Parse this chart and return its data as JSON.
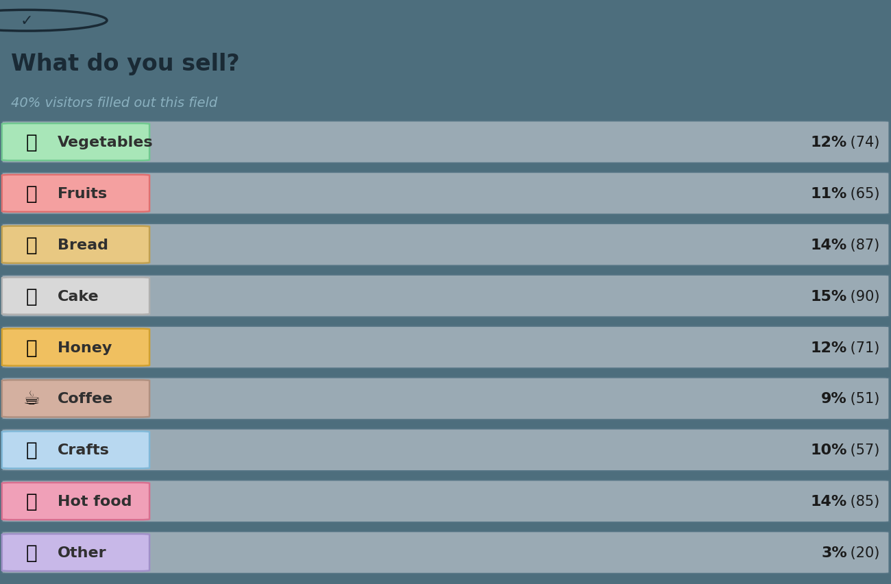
{
  "title": "What do you sell?",
  "subtitle": "40% visitors filled out this field",
  "background_color": "#4d6e7d",
  "bar_bg_color": "#9aaab4",
  "bar_border_color": "#567585",
  "categories": [
    "Vegetables",
    "Fruits",
    "Bread",
    "Cake",
    "Honey",
    "Coffee",
    "Crafts",
    "Hot food",
    "Other"
  ],
  "emojis": [
    "🥬",
    "🍎",
    "🍞",
    "🍰",
    "🍯",
    "☕",
    "🥁",
    "🍛",
    "🎁"
  ],
  "percentages": [
    12,
    11,
    14,
    15,
    12,
    9,
    10,
    14,
    3
  ],
  "counts": [
    74,
    65,
    87,
    90,
    71,
    51,
    57,
    85,
    20
  ],
  "label_bg_colors": [
    "#a8e6b8",
    "#f4a0a0",
    "#e8c882",
    "#d8d8d8",
    "#f0c060",
    "#d4b0a0",
    "#b8d8f0",
    "#f0a0b8",
    "#c8b8e8"
  ],
  "label_border_colors": [
    "#70c890",
    "#e07070",
    "#c0a050",
    "#b0b0b0",
    "#d0a030",
    "#b09080",
    "#80b8d8",
    "#d87090",
    "#a090c8"
  ],
  "label_text_color": "#303030",
  "pct_bold_color": "#1a1a1a",
  "pct_normal_color": "#1a1a1a",
  "title_color": "#1a2a35",
  "subtitle_color": "#8ab0bf",
  "icon_color": "#1a2a35",
  "figsize": [
    13.0,
    8.53
  ],
  "dpi": 100
}
